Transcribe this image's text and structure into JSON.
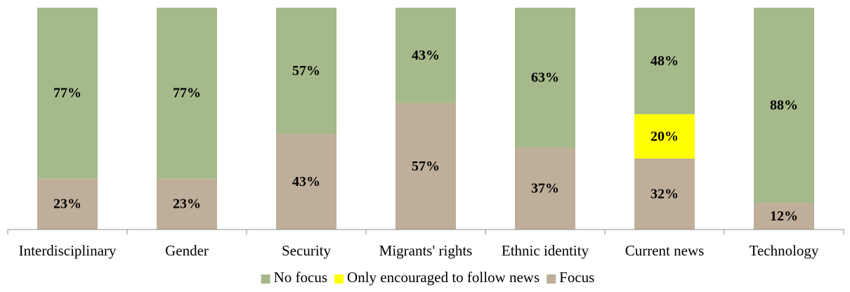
{
  "chart_data": {
    "type": "bar",
    "stacked": true,
    "percent": true,
    "categories": [
      "Interdisciplinary",
      "Gender",
      "Security",
      "Migrants' rights",
      "Ethnic identity",
      "Current news",
      "Technology"
    ],
    "series": [
      {
        "name": "Focus",
        "color": "#BFAE9A",
        "values": [
          23,
          23,
          43,
          57,
          37,
          32,
          12
        ],
        "labels": [
          "23%",
          "23%",
          "43%",
          "57%",
          "37%",
          "32%",
          "12%"
        ]
      },
      {
        "name": "Only encouraged to follow news",
        "color": "#FFFF00",
        "values": [
          0,
          0,
          0,
          0,
          0,
          20,
          0
        ],
        "labels": [
          "",
          "",
          "",
          "",
          "",
          "20%",
          ""
        ]
      },
      {
        "name": "No focus",
        "color": "#A6B98A",
        "values": [
          77,
          77,
          57,
          43,
          63,
          48,
          88
        ],
        "labels": [
          "77%",
          "77%",
          "57%",
          "43%",
          "63%",
          "48%",
          "88%"
        ]
      }
    ],
    "legend": {
      "position": "bottom",
      "order": [
        "No focus",
        "Only encouraged to follow news",
        "Focus"
      ]
    },
    "ylim": [
      0,
      100
    ],
    "grid": false
  }
}
